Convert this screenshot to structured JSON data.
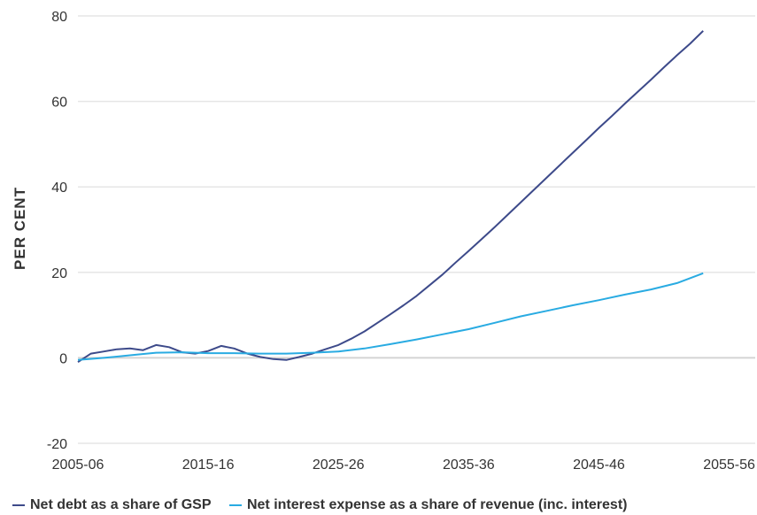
{
  "chart_data": {
    "type": "line",
    "title": "",
    "xlabel": "",
    "ylabel": "PER CENT",
    "ylim": [
      -20,
      80
    ],
    "yticks": [
      -20,
      0,
      20,
      40,
      60,
      80
    ],
    "ytick_labels": [
      "-20",
      "0",
      "20",
      "40",
      "60",
      "80"
    ],
    "xlim": [
      2005,
      2057
    ],
    "xticks": [
      2005,
      2015,
      2025,
      2035,
      2045,
      2055
    ],
    "xtick_labels": [
      "2005-06",
      "2015-16",
      "2025-26",
      "2035-36",
      "2045-46",
      "2055-56"
    ],
    "grid": "horizontal",
    "legend_position": "bottom",
    "series": [
      {
        "name": "Net debt as a share of GSP",
        "color": "#3d4a8a",
        "points": [
          [
            2005,
            -1.0
          ],
          [
            2006,
            1.0
          ],
          [
            2007,
            1.5
          ],
          [
            2008,
            2.0
          ],
          [
            2009,
            2.2
          ],
          [
            2010,
            1.8
          ],
          [
            2011,
            3.0
          ],
          [
            2012,
            2.5
          ],
          [
            2013,
            1.3
          ],
          [
            2014,
            1.0
          ],
          [
            2015,
            1.6
          ],
          [
            2016,
            2.8
          ],
          [
            2017,
            2.2
          ],
          [
            2018,
            1.0
          ],
          [
            2019,
            0.2
          ],
          [
            2020,
            -0.3
          ],
          [
            2021,
            -0.5
          ],
          [
            2022,
            0.2
          ],
          [
            2023,
            1.0
          ],
          [
            2024,
            2.0
          ],
          [
            2025,
            3.0
          ],
          [
            2026,
            4.5
          ],
          [
            2027,
            6.2
          ],
          [
            2028,
            8.2
          ],
          [
            2029,
            10.2
          ],
          [
            2030,
            12.3
          ],
          [
            2031,
            14.5
          ],
          [
            2032,
            17.0
          ],
          [
            2033,
            19.5
          ],
          [
            2034,
            22.3
          ],
          [
            2035,
            25.0
          ],
          [
            2036,
            27.8
          ],
          [
            2037,
            30.6
          ],
          [
            2038,
            33.5
          ],
          [
            2039,
            36.4
          ],
          [
            2040,
            39.3
          ],
          [
            2041,
            42.2
          ],
          [
            2042,
            45.1
          ],
          [
            2043,
            48.0
          ],
          [
            2044,
            50.9
          ],
          [
            2045,
            53.8
          ],
          [
            2046,
            56.6
          ],
          [
            2047,
            59.5
          ],
          [
            2048,
            62.3
          ],
          [
            2049,
            65.1
          ],
          [
            2050,
            68.0
          ],
          [
            2051,
            70.8
          ],
          [
            2052,
            73.5
          ],
          [
            2053,
            76.5
          ]
        ]
      },
      {
        "name": "Net interest expense as a share of revenue (inc. interest)",
        "color": "#29abe2",
        "points": [
          [
            2005,
            -0.5
          ],
          [
            2007,
            0.0
          ],
          [
            2009,
            0.6
          ],
          [
            2011,
            1.2
          ],
          [
            2013,
            1.3
          ],
          [
            2015,
            1.1
          ],
          [
            2017,
            1.1
          ],
          [
            2019,
            1.0
          ],
          [
            2021,
            1.0
          ],
          [
            2023,
            1.2
          ],
          [
            2025,
            1.5
          ],
          [
            2027,
            2.2
          ],
          [
            2029,
            3.2
          ],
          [
            2031,
            4.3
          ],
          [
            2033,
            5.5
          ],
          [
            2035,
            6.7
          ],
          [
            2037,
            8.2
          ],
          [
            2039,
            9.7
          ],
          [
            2041,
            11.0
          ],
          [
            2043,
            12.3
          ],
          [
            2045,
            13.5
          ],
          [
            2047,
            14.8
          ],
          [
            2049,
            16.0
          ],
          [
            2051,
            17.5
          ],
          [
            2053,
            19.8
          ]
        ]
      }
    ]
  }
}
